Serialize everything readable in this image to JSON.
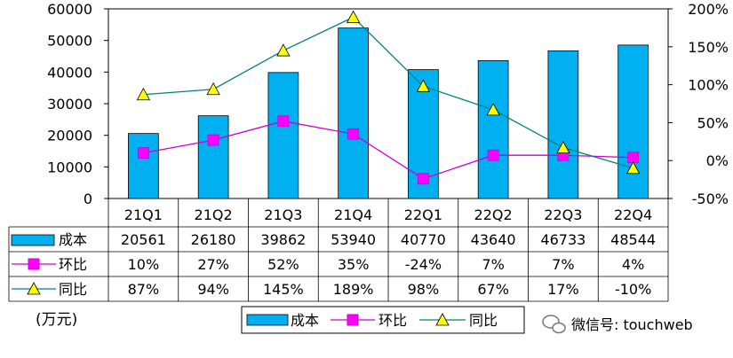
{
  "chart_data": {
    "type": "bar",
    "categories": [
      "21Q1",
      "21Q2",
      "21Q3",
      "21Q4",
      "22Q1",
      "22Q2",
      "22Q3",
      "22Q4"
    ],
    "series": [
      {
        "name": "成本",
        "kind": "bar",
        "axis": "left",
        "color": "#00B0F0",
        "values": [
          20561,
          26180,
          39862,
          53940,
          40770,
          43640,
          46733,
          48544
        ],
        "labels": [
          "20561",
          "26180",
          "39862",
          "53940",
          "40770",
          "43640",
          "46733",
          "48544"
        ]
      },
      {
        "name": "环比",
        "kind": "line",
        "axis": "right",
        "color": "#CC00CC",
        "marker": "square",
        "markerColor": "#FF00FF",
        "values": [
          10,
          27,
          52,
          35,
          -24,
          7,
          7,
          4
        ],
        "labels": [
          "10%",
          "27%",
          "52%",
          "35%",
          "-24%",
          "7%",
          "7%",
          "4%"
        ]
      },
      {
        "name": "同比",
        "kind": "line",
        "axis": "right",
        "color": "#008080",
        "marker": "triangle",
        "markerColor": "#FFFF00",
        "values": [
          87,
          94,
          145,
          189,
          98,
          67,
          17,
          -10
        ],
        "labels": [
          "87%",
          "94%",
          "145%",
          "189%",
          "98%",
          "67%",
          "17%",
          "-10%"
        ]
      }
    ],
    "y_left": {
      "min": 0,
      "max": 60000,
      "ticks": [
        "0",
        "10000",
        "20000",
        "30000",
        "40000",
        "50000",
        "60000"
      ]
    },
    "y_right": {
      "min": -50,
      "max": 200,
      "ticks": [
        "-50%",
        "0%",
        "50%",
        "100%",
        "150%",
        "200%"
      ]
    },
    "unit_label": "(万元)",
    "watermark": "微信号: touchweb"
  },
  "colors": {
    "bar": "#00B0F0",
    "mom_line": "#CC00CC",
    "yoy_line": "#008080",
    "grid": "#000000"
  }
}
